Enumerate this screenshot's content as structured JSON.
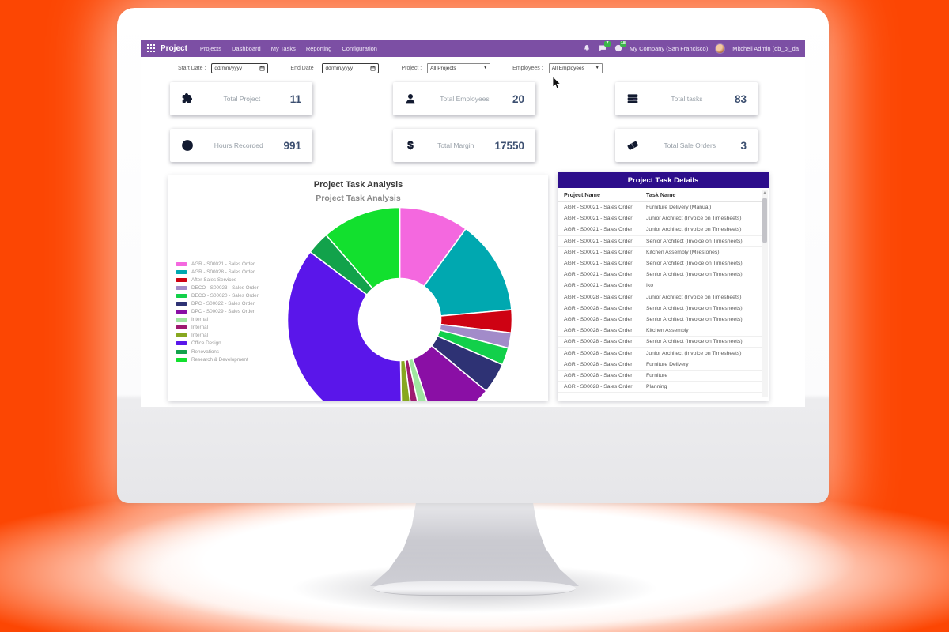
{
  "app": {
    "name": "Project",
    "menu_items": [
      "Projects",
      "Dashboard",
      "My Tasks",
      "Reporting",
      "Configuration"
    ],
    "company": "My Company (San Francisco)",
    "user": "Mitchell Admin (db_pj_da",
    "badges": {
      "messages": "7",
      "activities": "18"
    }
  },
  "filters": {
    "start_date_label": "Start Date :",
    "end_date_label": "End Date :",
    "date_placeholder": "dd/mm/yyyy",
    "project_label": "Project :",
    "project_value": "All Projects",
    "employees_label": "Employees :",
    "employees_value": "All Employees"
  },
  "kpis": [
    {
      "label": "Total Project",
      "value": "11",
      "icon": "puzzle-icon"
    },
    {
      "label": "Total Employees",
      "value": "20",
      "icon": "user-icon"
    },
    {
      "label": "Total tasks",
      "value": "83",
      "icon": "tasks-icon"
    },
    {
      "label": "Hours Recorded",
      "value": "991",
      "icon": "clock-icon"
    },
    {
      "label": "Total Margin",
      "value": "17550",
      "icon": "dollar-icon"
    },
    {
      "label": "Total Sale Orders",
      "value": "3",
      "icon": "ticket-icon"
    }
  ],
  "chart_card": {
    "title": "Project Task Analysis",
    "subtitle": "Project Task Analysis"
  },
  "chart_data": {
    "type": "pie",
    "donut": true,
    "title": "Project Task Analysis",
    "legend_position": "left",
    "labels": [
      "AGR - S00021 - Sales Order",
      "AGR - S00028 - Sales Order",
      "After-Sales Services",
      "DECO - S00023 - Sales Order",
      "DECO - S00020 - Sales Order",
      "DPC - S00022 - Sales Order",
      "DPC - S00029 - Sales Order",
      "Internal",
      "Internal",
      "Internal",
      "Office Design",
      "Renovations",
      "Research & Development"
    ],
    "values": [
      10,
      13.6,
      3.3,
      2.2,
      2.5,
      4.4,
      8.9,
      1.7,
      1.4,
      1.7,
      35.6,
      3.3,
      11.4
    ],
    "colors": [
      "#F468DF",
      "#00A8B0",
      "#CE0213",
      "#A28BC9",
      "#12D04A",
      "#2E3274",
      "#8A0FA5",
      "#9FE59F",
      "#9E1A70",
      "#87A71F",
      "#5A16EA",
      "#12A24B",
      "#12E02E"
    ]
  },
  "table": {
    "title": "Project Task Details",
    "columns": [
      "Project Name",
      "Task Name"
    ],
    "rows": [
      [
        "AGR - S00021 - Sales Order",
        "Furniture Delivery (Manual)"
      ],
      [
        "AGR - S00021 - Sales Order",
        "Junior Architect (Invoice on Timesheets)"
      ],
      [
        "AGR - S00021 - Sales Order",
        "Junior Architect (Invoice on Timesheets)"
      ],
      [
        "AGR - S00021 - Sales Order",
        "Senior Architect (Invoice on Timesheets)"
      ],
      [
        "AGR - S00021 - Sales Order",
        "Kitchen Assembly (Milestones)"
      ],
      [
        "AGR - S00021 - Sales Order",
        "Senior Architect (Invoice on Timesheets)"
      ],
      [
        "AGR - S00021 - Sales Order",
        "Senior Architect (Invoice on Timesheets)"
      ],
      [
        "AGR - S00021 - Sales Order",
        "Iko"
      ],
      [
        "AGR - S00028 - Sales Order",
        "Junior Architect (Invoice on Timesheets)"
      ],
      [
        "AGR - S00028 - Sales Order",
        "Senior Architect (Invoice on Timesheets)"
      ],
      [
        "AGR - S00028 - Sales Order",
        "Senior Architect (Invoice on Timesheets)"
      ],
      [
        "AGR - S00028 - Sales Order",
        "Kitchen Assembly"
      ],
      [
        "AGR - S00028 - Sales Order",
        "Senior Architect (Invoice on Timesheets)"
      ],
      [
        "AGR - S00028 - Sales Order",
        "Junior Architect (Invoice on Timesheets)"
      ],
      [
        "AGR - S00028 - Sales Order",
        "Furniture Delivery"
      ],
      [
        "AGR - S00028 - Sales Order",
        "Furniture"
      ],
      [
        "AGR - S00028 - Sales Order",
        "Planning"
      ]
    ]
  },
  "colors": {
    "background": "#FC4603",
    "navbar": "#7C4FA4",
    "table_header": "#2D0E8B",
    "kpi_value": "#3C4F70",
    "badge": "#3BB54A"
  }
}
